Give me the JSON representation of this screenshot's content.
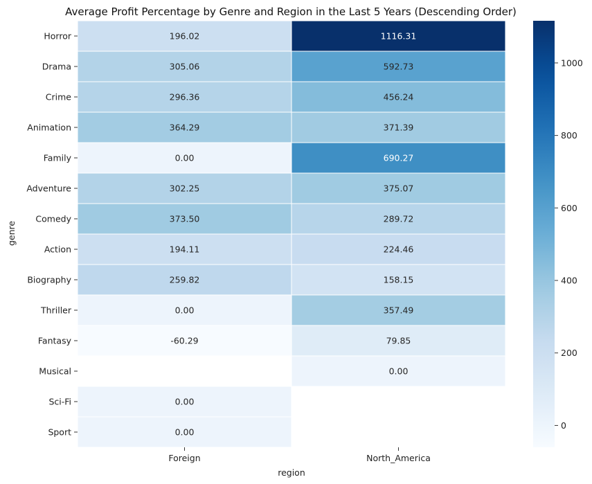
{
  "chart_data": {
    "type": "heatmap",
    "title": "Average Profit Percentage by Genre and Region in the Last 5 Years (Descending Order)",
    "xlabel": "region",
    "ylabel": "genre",
    "x_categories": [
      "Foreign",
      "North_America"
    ],
    "y_categories": [
      "Horror",
      "Drama",
      "Crime",
      "Animation",
      "Family",
      "Adventure",
      "Comedy",
      "Action",
      "Biography",
      "Thriller",
      "Fantasy",
      "Musical",
      "Sci-Fi",
      "Sport"
    ],
    "values": [
      [
        196.02,
        1116.31
      ],
      [
        305.06,
        592.73
      ],
      [
        296.36,
        456.24
      ],
      [
        364.29,
        371.39
      ],
      [
        0.0,
        690.27
      ],
      [
        302.25,
        375.07
      ],
      [
        373.5,
        289.72
      ],
      [
        194.11,
        224.46
      ],
      [
        259.82,
        158.15
      ],
      [
        0.0,
        357.49
      ],
      [
        -60.29,
        79.85
      ],
      [
        null,
        0.0
      ],
      [
        0.0,
        null
      ],
      [
        0.0,
        null
      ]
    ],
    "value_labels": [
      [
        "196.02",
        "1116.31"
      ],
      [
        "305.06",
        "592.73"
      ],
      [
        "296.36",
        "456.24"
      ],
      [
        "364.29",
        "371.39"
      ],
      [
        "0.00",
        "690.27"
      ],
      [
        "302.25",
        "375.07"
      ],
      [
        "373.50",
        "289.72"
      ],
      [
        "194.11",
        "224.46"
      ],
      [
        "259.82",
        "158.15"
      ],
      [
        "0.00",
        "357.49"
      ],
      [
        "-60.29",
        "79.85"
      ],
      [
        "",
        "0.00"
      ],
      [
        "0.00",
        ""
      ],
      [
        "0.00",
        ""
      ]
    ],
    "color_range": [
      -60.29,
      1116.31
    ],
    "colormap": "Blues",
    "colorbar_ticks": [
      0,
      200,
      400,
      600,
      800,
      1000
    ],
    "grid": false
  }
}
